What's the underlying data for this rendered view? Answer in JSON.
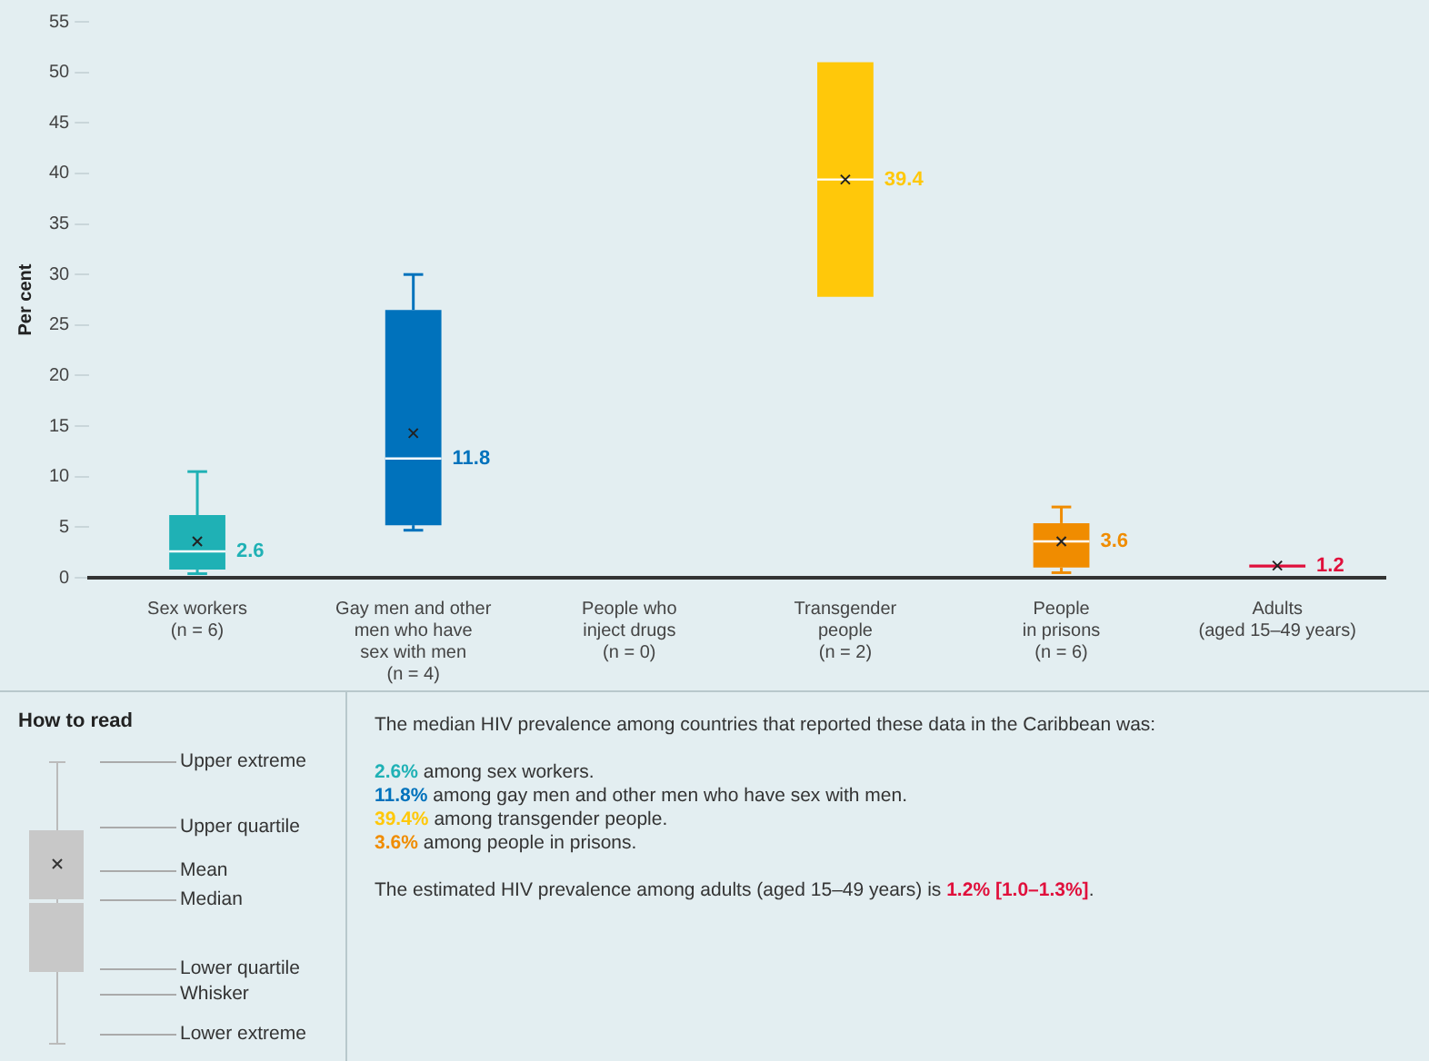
{
  "chart_data": {
    "type": "box",
    "ylabel": "Per cent",
    "categories": [
      "Sex workers\n(n = 6)",
      "Gay men and other\nmen who have\nsex with men\n(n = 4)",
      "People who\ninject drugs\n(n = 0)",
      "Transgender\npeople\n(n = 2)",
      "People\nin prisons\n(n = 6)",
      "Adults\n(aged 15–49 years)"
    ],
    "boxes": [
      {
        "low": 0.4,
        "q1": 0.8,
        "median": 2.6,
        "q3": 6.2,
        "high": 10.5,
        "mean": 3.6
      },
      {
        "low": 4.7,
        "q1": 5.2,
        "median": 11.8,
        "q3": 26.5,
        "high": 30,
        "mean": 14.3
      },
      null,
      {
        "low": 27.8,
        "q1": 27.8,
        "median": 39.4,
        "q3": 51,
        "high": 51,
        "mean": 39.4
      },
      {
        "low": 0.5,
        "q1": 1.0,
        "median": 3.6,
        "q3": 5.4,
        "high": 7.0,
        "mean": 3.6
      },
      {
        "low": 1.0,
        "q1": 1.0,
        "median": 1.2,
        "q3": 1.3,
        "high": 1.3,
        "mean": 1.2
      }
    ],
    "colors": [
      "#1fb1b5",
      "#0072bc",
      "#cccccc",
      "#ffc80a",
      "#f08c00",
      "#e0103c"
    ],
    "value_labels": [
      "2.6",
      "11.8",
      null,
      "39.4",
      "3.6",
      "1.2"
    ],
    "ylim": [
      0,
      55
    ],
    "yticks": [
      0,
      5,
      10,
      15,
      20,
      25,
      30,
      35,
      40,
      45,
      50,
      55
    ],
    "annotations": [
      "How to read",
      "Upper extreme",
      "Upper quartile",
      "Mean",
      "Median",
      "Lower quartile",
      "Whisker",
      "Lower extreme",
      "The median HIV prevalence among countries that reported these data in the Caribbean was:",
      "2.6% among sex workers.",
      "11.8% among gay men and other men who have sex with men.",
      "39.4% among transgender people.",
      "3.6% among people in prisons.",
      "The estimated HIV prevalence among adults (aged 15–49 years) is 1.2% [1.0–1.3%]."
    ]
  }
}
